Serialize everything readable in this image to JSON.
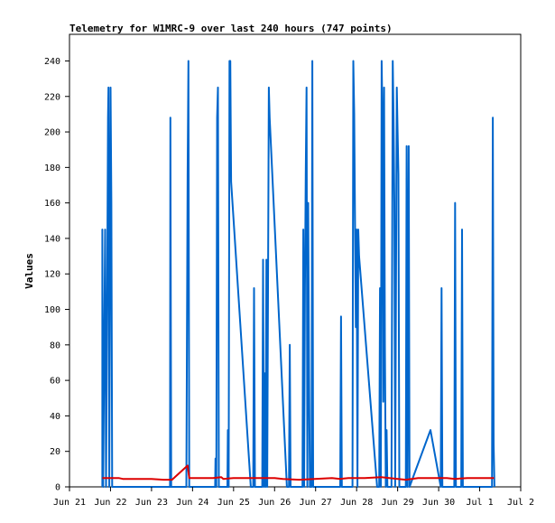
{
  "chart_data": {
    "type": "line",
    "title": "Telemetry for W1MRC-9 over last 240 hours (747 points)",
    "xlabel": "",
    "ylabel": "Values",
    "xlim": [
      "Jun 21",
      "Jul 2"
    ],
    "ylim": [
      0,
      255
    ],
    "x_ticks": [
      "Jun 21",
      "Jun 22",
      "Jun 23",
      "Jun 24",
      "Jun 25",
      "Jun 26",
      "Jun 27",
      "Jun 28",
      "Jun 29",
      "Jun 30",
      "Jul 1",
      "Jul 2"
    ],
    "y_ticks": [
      0,
      20,
      40,
      60,
      80,
      100,
      120,
      140,
      160,
      180,
      200,
      220,
      240
    ],
    "grid": false,
    "legend": "none",
    "series": [
      {
        "color": "#0066cc",
        "points": [
          [
            0.8,
            0
          ],
          [
            0.8,
            145
          ],
          [
            0.82,
            0
          ],
          [
            0.87,
            145
          ],
          [
            0.89,
            0
          ],
          [
            0.92,
            112
          ],
          [
            0.94,
            208
          ],
          [
            0.95,
            225
          ],
          [
            0.97,
            0
          ],
          [
            1.0,
            225
          ],
          [
            1.02,
            160
          ],
          [
            1.04,
            0
          ],
          [
            2.45,
            0
          ],
          [
            2.46,
            208
          ],
          [
            2.48,
            0
          ],
          [
            2.85,
            0
          ],
          [
            2.88,
            176
          ],
          [
            2.9,
            240
          ],
          [
            2.92,
            0
          ],
          [
            3.55,
            0
          ],
          [
            3.56,
            16
          ],
          [
            3.58,
            0
          ],
          [
            3.6,
            208
          ],
          [
            3.62,
            225
          ],
          [
            3.64,
            0
          ],
          [
            3.85,
            0
          ],
          [
            3.86,
            32
          ],
          [
            3.88,
            0
          ],
          [
            3.9,
            240
          ],
          [
            3.92,
            240
          ],
          [
            3.94,
            172
          ],
          [
            4.42,
            0
          ],
          [
            4.48,
            0
          ],
          [
            4.5,
            112
          ],
          [
            4.52,
            0
          ],
          [
            4.7,
            0
          ],
          [
            4.72,
            128
          ],
          [
            4.74,
            0
          ],
          [
            4.76,
            64
          ],
          [
            4.78,
            0
          ],
          [
            4.8,
            128
          ],
          [
            4.82,
            0
          ],
          [
            4.86,
            225
          ],
          [
            4.88,
            208
          ],
          [
            5.3,
            0
          ],
          [
            5.35,
            0
          ],
          [
            5.37,
            80
          ],
          [
            5.39,
            0
          ],
          [
            5.68,
            0
          ],
          [
            5.7,
            145
          ],
          [
            5.72,
            0
          ],
          [
            5.74,
            112
          ],
          [
            5.76,
            176
          ],
          [
            5.78,
            225
          ],
          [
            5.8,
            0
          ],
          [
            5.82,
            160
          ],
          [
            5.84,
            64
          ],
          [
            5.86,
            0
          ],
          [
            5.9,
            0
          ],
          [
            5.92,
            240
          ],
          [
            5.94,
            0
          ],
          [
            6.6,
            0
          ],
          [
            6.62,
            96
          ],
          [
            6.64,
            0
          ],
          [
            6.9,
            0
          ],
          [
            6.92,
            240
          ],
          [
            6.94,
            210
          ],
          [
            6.96,
            150
          ],
          [
            6.98,
            90
          ],
          [
            7.0,
            145
          ],
          [
            7.02,
            0
          ],
          [
            7.04,
            145
          ],
          [
            7.06,
            130
          ],
          [
            7.5,
            0
          ],
          [
            7.55,
            0
          ],
          [
            7.57,
            112
          ],
          [
            7.59,
            0
          ],
          [
            7.61,
            240
          ],
          [
            7.63,
            208
          ],
          [
            7.65,
            48
          ],
          [
            7.67,
            225
          ],
          [
            7.69,
            80
          ],
          [
            7.71,
            0
          ],
          [
            7.73,
            32
          ],
          [
            7.75,
            0
          ],
          [
            7.85,
            0
          ],
          [
            7.88,
            240
          ],
          [
            7.9,
            208
          ],
          [
            7.92,
            160
          ],
          [
            7.94,
            0
          ],
          [
            7.98,
            225
          ],
          [
            8.0,
            200
          ],
          [
            8.02,
            176
          ],
          [
            8.04,
            0
          ],
          [
            8.2,
            0
          ],
          [
            8.22,
            192
          ],
          [
            8.24,
            0
          ],
          [
            8.27,
            192
          ],
          [
            8.29,
            0
          ],
          [
            8.8,
            32
          ],
          [
            9.05,
            0
          ],
          [
            9.07,
            112
          ],
          [
            9.09,
            0
          ],
          [
            9.38,
            0
          ],
          [
            9.4,
            160
          ],
          [
            9.42,
            0
          ],
          [
            9.55,
            0
          ],
          [
            9.57,
            145
          ],
          [
            9.59,
            0
          ],
          [
            10.3,
            0
          ],
          [
            10.32,
            208
          ],
          [
            10.34,
            24
          ],
          [
            10.36,
            0
          ]
        ]
      },
      {
        "color": "#dd0000",
        "points": [
          [
            0.8,
            5
          ],
          [
            1.2,
            5
          ],
          [
            1.3,
            4.5
          ],
          [
            2.0,
            4.5
          ],
          [
            2.3,
            4
          ],
          [
            2.5,
            4
          ],
          [
            2.88,
            12
          ],
          [
            2.92,
            5
          ],
          [
            3.5,
            5
          ],
          [
            3.7,
            5.5
          ],
          [
            3.75,
            4.5
          ],
          [
            4.0,
            5
          ],
          [
            5.0,
            5
          ],
          [
            5.2,
            4.5
          ],
          [
            5.6,
            4
          ],
          [
            6.4,
            5
          ],
          [
            6.6,
            4.5
          ],
          [
            6.8,
            5
          ],
          [
            7.2,
            5
          ],
          [
            7.6,
            5.5
          ],
          [
            7.8,
            5
          ],
          [
            8.2,
            4
          ],
          [
            8.5,
            5
          ],
          [
            9.2,
            5
          ],
          [
            9.4,
            4.5
          ],
          [
            9.7,
            5
          ],
          [
            10.35,
            5
          ]
        ]
      }
    ]
  }
}
